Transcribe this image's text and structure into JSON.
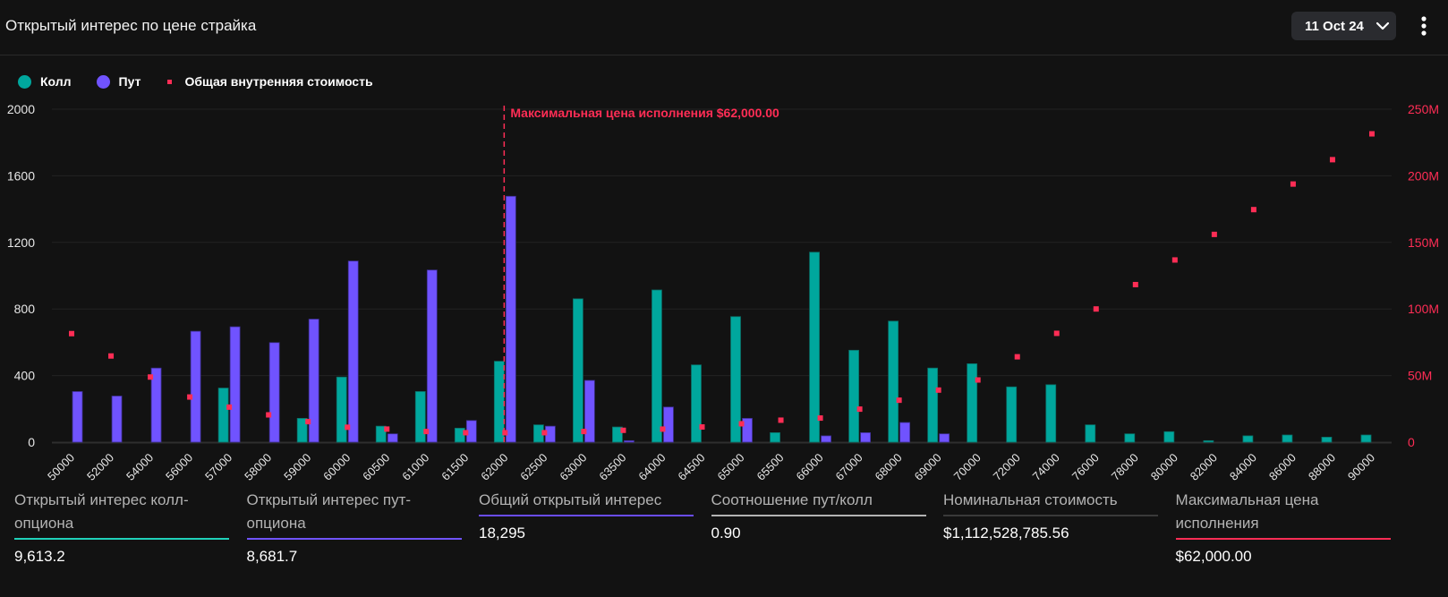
{
  "header": {
    "title": "Открытый интерес по цене страйка",
    "date_selector": {
      "label": "11 Oct 24",
      "icon": "chevron-down-icon"
    },
    "more_icon": "kebab-menu-icon"
  },
  "legend": [
    {
      "label": "Колл",
      "color": "#00a79d",
      "shape": "circle"
    },
    {
      "label": "Пут",
      "color": "#7053ff",
      "shape": "circle"
    },
    {
      "label": "Общая внутренняя стоимость",
      "color": "#ff2d55",
      "shape": "square"
    }
  ],
  "chart_data": {
    "type": "bar",
    "title": "Открытый интерес по цене страйка",
    "xlabel": "",
    "ylabel": "",
    "ylim": [
      0,
      2000
    ],
    "y_ticks": [
      "0",
      "400",
      "800",
      "1200",
      "1600",
      "2000"
    ],
    "y2lim": [
      0,
      250000000
    ],
    "y2_ticks": [
      "0",
      "50M",
      "100M",
      "150M",
      "200M",
      "250M"
    ],
    "grid": true,
    "legend_position": "top-left",
    "categories": [
      "50000",
      "52000",
      "54000",
      "56000",
      "57000",
      "58000",
      "59000",
      "60000",
      "60500",
      "61000",
      "61500",
      "62000",
      "62500",
      "63000",
      "63500",
      "64000",
      "64500",
      "65000",
      "65500",
      "66000",
      "67000",
      "68000",
      "69000",
      "70000",
      "72000",
      "74000",
      "76000",
      "78000",
      "80000",
      "82000",
      "84000",
      "86000",
      "88000",
      "90000"
    ],
    "series": [
      {
        "name": "Колл",
        "type": "bar",
        "axis": "left",
        "color": "#00a79d",
        "values": [
          0,
          0,
          0,
          0,
          325,
          0,
          143,
          391,
          96,
          304,
          84,
          486,
          104,
          861,
          91,
          914,
          464,
          754,
          57,
          1141,
          552,
          727,
          445,
          471,
          332,
          345,
          104,
          50,
          63,
          9,
          38,
          43,
          30,
          43
        ]
      },
      {
        "name": "Пут",
        "type": "bar",
        "axis": "left",
        "color": "#7053ff",
        "values": [
          304,
          277,
          445,
          666,
          693,
          598,
          739,
          1088,
          50,
          1034,
          130,
          1477,
          96,
          371,
          9,
          211,
          0,
          143,
          0,
          38,
          57,
          118,
          50,
          0,
          0,
          0,
          0,
          0,
          0,
          0,
          0,
          0,
          0,
          0
        ]
      },
      {
        "name": "Общая внутренняя стоимость",
        "type": "scatter",
        "axis": "right",
        "color": "#ff2d55",
        "values": [
          81500000,
          64700000,
          48900000,
          33900000,
          26300000,
          20500000,
          15400000,
          11200000,
          9800000,
          8000000,
          7100000,
          7100000,
          7100000,
          8000000,
          8900000,
          9800000,
          11400000,
          13800000,
          16500000,
          18100000,
          24800000,
          31500000,
          39100000,
          46700000,
          64100000,
          81700000,
          100000000,
          118300000,
          136800000,
          156000000,
          174600000,
          193800000,
          212100000,
          231500000
        ]
      }
    ],
    "annotation": {
      "category": "62000",
      "label": "Максимальная цена исполнения $62,000.00",
      "color": "#ff2d55",
      "style": "dashed-vertical-line"
    }
  },
  "stats": [
    {
      "label": "Открытый интерес колл-опциона",
      "value": "9,613.2",
      "accent": "#1fd1b9"
    },
    {
      "label": "Открытый интерес пут-опциона",
      "value": "8,681.7",
      "accent": "#7053ff"
    },
    {
      "label": "Общий открытый интерес",
      "value": "18,295",
      "accent": "#6a4cf5"
    },
    {
      "label": "Соотношение пут/колл",
      "value": "0.90",
      "accent": "#b3b3b3"
    },
    {
      "label": "Номинальная стоимость",
      "value": "$1,112,528,785.56",
      "accent": "#3a3a3a"
    },
    {
      "label": "Максимальная цена исполнения",
      "value": "$62,000.00",
      "accent": "#ff2d55"
    }
  ]
}
